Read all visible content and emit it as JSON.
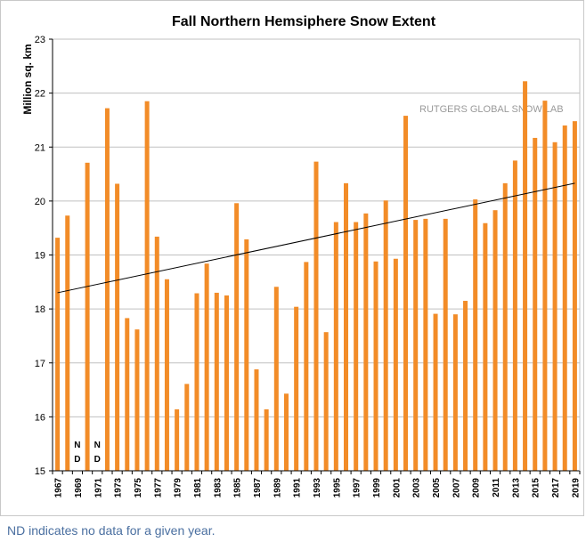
{
  "chart_data": {
    "type": "bar",
    "title": "Fall Northern Hemsiphere Snow Extent",
    "ylabel": "Million sq. km",
    "xlabel": "",
    "ylim": [
      15,
      23
    ],
    "yticks": [
      "15",
      "16",
      "17",
      "18",
      "19",
      "20",
      "21",
      "22",
      "23"
    ],
    "bar_color": "#f28c28",
    "trend_color": "#000000",
    "trendline": {
      "start": 18.3,
      "end": 20.33
    },
    "watermark": "RUTGERS GLOBAL SNOW LAB",
    "no_data_label": [
      "N",
      "D"
    ],
    "years": [
      1967,
      1968,
      1969,
      1970,
      1971,
      1972,
      1973,
      1974,
      1975,
      1976,
      1977,
      1978,
      1979,
      1980,
      1981,
      1982,
      1983,
      1984,
      1985,
      1986,
      1987,
      1988,
      1989,
      1990,
      1991,
      1992,
      1993,
      1994,
      1995,
      1996,
      1997,
      1998,
      1999,
      2000,
      2001,
      2002,
      2003,
      2004,
      2005,
      2006,
      2007,
      2008,
      2009,
      2010,
      2011,
      2012,
      2013,
      2014,
      2015,
      2016,
      2017,
      2018,
      2019
    ],
    "xtick_labels": [
      "1967",
      "1969",
      "1971",
      "1973",
      "1975",
      "1977",
      "1979",
      "1981",
      "1983",
      "1985",
      "1987",
      "1989",
      "1991",
      "1993",
      "1995",
      "1997",
      "1999",
      "2001",
      "2003",
      "2005",
      "2007",
      "2009",
      "2011",
      "2013",
      "2015",
      "2017",
      "2019"
    ],
    "values": [
      19.32,
      19.73,
      null,
      20.71,
      null,
      21.72,
      20.32,
      17.83,
      17.62,
      21.85,
      19.34,
      18.55,
      16.14,
      16.61,
      18.29,
      18.84,
      18.3,
      18.25,
      19.96,
      19.29,
      16.88,
      16.14,
      18.41,
      16.43,
      18.04,
      18.87,
      20.73,
      17.57,
      19.61,
      20.33,
      19.61,
      19.77,
      18.88,
      20.01,
      18.93,
      21.58,
      19.65,
      19.67,
      17.91,
      19.67,
      17.9,
      18.15,
      20.03,
      19.59,
      19.83,
      20.33,
      20.75,
      22.22,
      21.17,
      21.86,
      21.09,
      21.4,
      21.48
    ]
  },
  "caption": "ND indicates no data for a given year."
}
